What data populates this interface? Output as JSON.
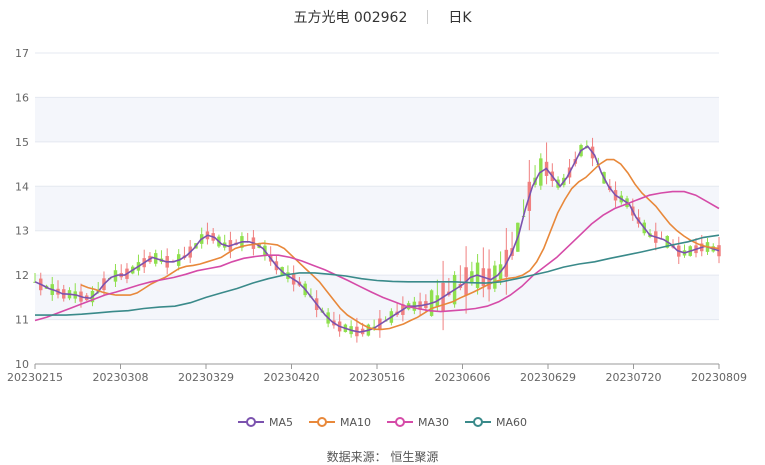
{
  "header": {
    "stock": "五方光电 002962",
    "period": "日K"
  },
  "source": "数据来源： 恒生聚源",
  "colors": {
    "up": "#f08080",
    "down": "#8fe04e",
    "ma5": "#7b52ae",
    "ma10": "#e8883a",
    "ma30": "#d54ba8",
    "ma60": "#3a8a8a"
  },
  "chart_data": {
    "type": "candlestick",
    "ylim": [
      10,
      17
    ],
    "yticks": [
      10,
      11,
      12,
      13,
      14,
      15,
      16,
      17
    ],
    "xtick_labels": [
      "20230215",
      "20230308",
      "20230329",
      "20230420",
      "20230516",
      "20230606",
      "20230629",
      "20230720",
      "20230809"
    ],
    "candle_count": 120,
    "legend": [
      "MA5",
      "MA10",
      "MA30",
      "MA60"
    ],
    "series": [
      {
        "name": "MA5",
        "values": [
          11.85,
          11.78,
          11.7,
          11.65,
          11.58,
          11.57,
          11.55,
          11.5,
          11.48,
          11.6,
          11.8,
          11.95,
          12.0,
          12.0,
          12.1,
          12.2,
          12.3,
          12.4,
          12.35,
          12.3,
          12.3,
          12.35,
          12.45,
          12.6,
          12.8,
          12.9,
          12.85,
          12.7,
          12.65,
          12.7,
          12.75,
          12.75,
          12.7,
          12.6,
          12.4,
          12.2,
          12.05,
          11.95,
          11.85,
          11.7,
          11.5,
          11.3,
          11.1,
          10.95,
          10.85,
          10.8,
          10.75,
          10.72,
          10.75,
          10.8,
          10.9,
          11.0,
          11.1,
          11.2,
          11.3,
          11.3,
          11.32,
          11.35,
          11.4,
          11.5,
          11.6,
          11.7,
          11.8,
          11.95,
          12.0,
          11.95,
          11.9,
          12.0,
          12.2,
          12.5,
          12.9,
          13.5,
          14.0,
          14.3,
          14.4,
          14.2,
          14.0,
          14.2,
          14.5,
          14.8,
          14.9,
          14.7,
          14.3,
          14.0,
          13.8,
          13.7,
          13.6,
          13.3,
          13.1,
          12.9,
          12.85,
          12.8,
          12.7,
          12.55,
          12.5,
          12.55,
          12.6,
          12.65,
          12.6,
          12.55
        ],
        "x_start": 0
      },
      {
        "name": "MA10",
        "values": [
          11.78,
          11.72,
          11.68,
          11.62,
          11.58,
          11.55,
          11.55,
          11.55,
          11.6,
          11.7,
          11.8,
          11.88,
          11.95,
          12.05,
          12.15,
          12.2,
          12.22,
          12.25,
          12.3,
          12.35,
          12.4,
          12.5,
          12.6,
          12.65,
          12.68,
          12.7,
          12.72,
          12.7,
          12.68,
          12.6,
          12.45,
          12.3,
          12.15,
          12.0,
          11.85,
          11.65,
          11.45,
          11.25,
          11.1,
          11.0,
          10.9,
          10.82,
          10.78,
          10.78,
          10.8,
          10.85,
          10.9,
          10.98,
          11.05,
          11.15,
          11.25,
          11.3,
          11.35,
          11.4,
          11.48,
          11.55,
          11.62,
          11.7,
          11.78,
          11.85,
          11.9,
          11.93,
          11.95,
          12.0,
          12.1,
          12.3,
          12.6,
          13.0,
          13.4,
          13.7,
          13.95,
          14.1,
          14.2,
          14.35,
          14.5,
          14.6,
          14.6,
          14.5,
          14.3,
          14.05,
          13.85,
          13.7,
          13.55,
          13.35,
          13.15,
          13.0,
          12.88,
          12.78,
          12.7,
          12.65,
          12.62,
          12.6
        ],
        "x_start": 8
      },
      {
        "name": "MA30",
        "values": [
          10.98,
          11.05,
          11.15,
          11.25,
          11.35,
          11.45,
          11.55,
          11.62,
          11.7,
          11.78,
          11.85,
          11.9,
          11.95,
          12.02,
          12.1,
          12.15,
          12.2,
          12.3,
          12.38,
          12.42,
          12.45,
          12.45,
          12.4,
          12.32,
          12.22,
          12.12,
          12.0,
          11.88,
          11.75,
          11.62,
          11.5,
          11.4,
          11.3,
          11.25,
          11.2,
          11.18,
          11.2,
          11.22,
          11.25,
          11.3,
          11.4,
          11.55,
          11.75,
          12.0,
          12.2,
          12.4,
          12.65,
          12.9,
          13.15,
          13.35,
          13.5,
          13.6,
          13.7,
          13.8,
          13.85,
          13.88,
          13.88,
          13.8,
          13.65,
          13.5
        ],
        "x_start": 0,
        "x_step": 2
      },
      {
        "name": "MA60",
        "values": [
          11.1,
          11.1,
          11.1,
          11.12,
          11.15,
          11.18,
          11.2,
          11.25,
          11.28,
          11.3,
          11.38,
          11.5,
          11.6,
          11.7,
          11.82,
          11.92,
          12.0,
          12.05,
          12.05,
          12.02,
          11.98,
          11.92,
          11.88,
          11.86,
          11.85,
          11.85,
          11.85,
          11.85,
          11.83,
          11.82,
          11.85,
          11.92,
          12.0,
          12.08,
          12.18,
          12.25,
          12.3,
          12.38,
          12.45,
          12.52,
          12.6,
          12.68,
          12.75,
          12.85,
          12.9
        ],
        "x_start": 0,
        "x_step": 2.7
      }
    ]
  }
}
